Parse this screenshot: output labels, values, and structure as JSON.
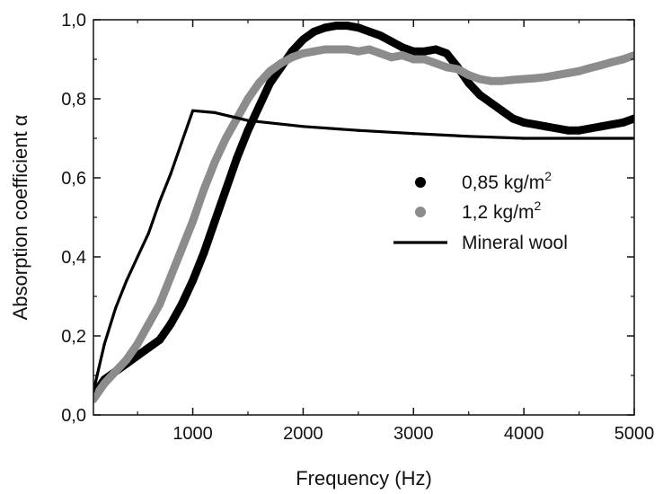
{
  "chart_data": {
    "type": "line",
    "xlabel": "Frequency (Hz)",
    "ylabel": "Absorption coefficient α",
    "xlim": [
      100,
      5000
    ],
    "ylim": [
      0,
      1.0
    ],
    "x_ticks": [
      1000,
      2000,
      3000,
      4000,
      5000
    ],
    "x_tick_labels": [
      "1000",
      "2000",
      "3000",
      "4000",
      "5000"
    ],
    "y_ticks": [
      0,
      0.2,
      0.4,
      0.6,
      0.8,
      1.0
    ],
    "y_tick_labels": [
      "0,0",
      "0,2",
      "0,4",
      "0,6",
      "0,8",
      "1,0"
    ],
    "grid": false,
    "legend_position": "right",
    "series": [
      {
        "name": "0,85 kg/m",
        "name_superscript": "2",
        "style": "thick-dots",
        "color": "#000000",
        "x": [
          100,
          200,
          300,
          400,
          500,
          600,
          700,
          800,
          900,
          1000,
          1100,
          1200,
          1300,
          1400,
          1500,
          1600,
          1700,
          1800,
          1900,
          2000,
          2100,
          2200,
          2300,
          2400,
          2500,
          2600,
          2700,
          2800,
          2900,
          3000,
          3100,
          3200,
          3300,
          3400,
          3500,
          3600,
          3700,
          3800,
          3900,
          4000,
          4100,
          4200,
          4300,
          4400,
          4500,
          4600,
          4700,
          4800,
          4900,
          5000
        ],
        "values": [
          0.05,
          0.09,
          0.11,
          0.13,
          0.15,
          0.17,
          0.19,
          0.23,
          0.28,
          0.34,
          0.41,
          0.49,
          0.57,
          0.65,
          0.72,
          0.78,
          0.84,
          0.88,
          0.92,
          0.95,
          0.97,
          0.98,
          0.985,
          0.985,
          0.98,
          0.97,
          0.96,
          0.945,
          0.93,
          0.92,
          0.92,
          0.925,
          0.915,
          0.88,
          0.84,
          0.81,
          0.79,
          0.77,
          0.75,
          0.74,
          0.735,
          0.73,
          0.725,
          0.72,
          0.72,
          0.725,
          0.73,
          0.735,
          0.74,
          0.75
        ]
      },
      {
        "name": "1,2 kg/m",
        "name_superscript": "2",
        "style": "thick-dots",
        "color": "#8c8c8c",
        "x": [
          100,
          200,
          300,
          400,
          500,
          600,
          700,
          800,
          900,
          1000,
          1100,
          1200,
          1300,
          1400,
          1500,
          1600,
          1700,
          1800,
          1900,
          2000,
          2100,
          2200,
          2300,
          2400,
          2500,
          2600,
          2700,
          2800,
          2900,
          3000,
          3100,
          3200,
          3300,
          3400,
          3500,
          3600,
          3700,
          3800,
          3900,
          4000,
          4100,
          4200,
          4300,
          4400,
          4500,
          4600,
          4700,
          4800,
          4900,
          5000
        ],
        "values": [
          0.04,
          0.08,
          0.11,
          0.14,
          0.18,
          0.23,
          0.28,
          0.35,
          0.42,
          0.49,
          0.57,
          0.64,
          0.7,
          0.75,
          0.8,
          0.84,
          0.87,
          0.89,
          0.905,
          0.915,
          0.92,
          0.925,
          0.925,
          0.925,
          0.92,
          0.925,
          0.915,
          0.905,
          0.91,
          0.9,
          0.9,
          0.89,
          0.88,
          0.875,
          0.86,
          0.85,
          0.845,
          0.845,
          0.848,
          0.85,
          0.852,
          0.855,
          0.86,
          0.865,
          0.87,
          0.878,
          0.885,
          0.893,
          0.9,
          0.91
        ]
      },
      {
        "name": "Mineral wool",
        "style": "line",
        "color": "#000000",
        "x": [
          100,
          200,
          300,
          400,
          500,
          600,
          700,
          800,
          900,
          1000,
          1200,
          1500,
          2000,
          2500,
          3000,
          3500,
          4000,
          4500,
          5000
        ],
        "values": [
          0.06,
          0.18,
          0.27,
          0.34,
          0.4,
          0.46,
          0.54,
          0.61,
          0.69,
          0.77,
          0.765,
          0.745,
          0.73,
          0.72,
          0.712,
          0.705,
          0.7,
          0.7,
          0.7
        ]
      }
    ]
  }
}
